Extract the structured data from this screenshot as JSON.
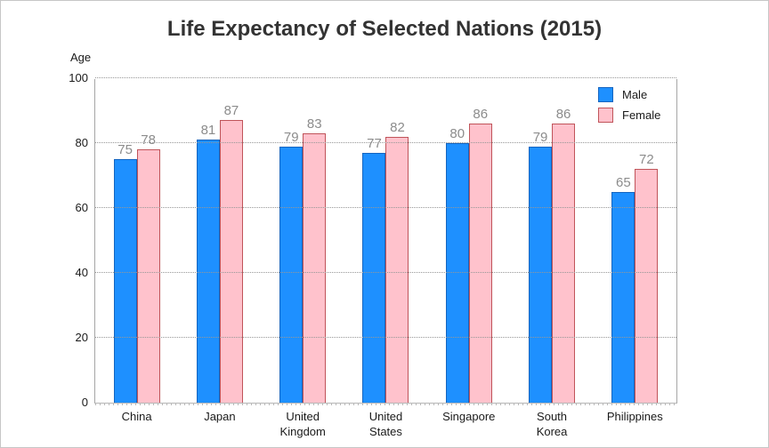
{
  "chart_data": {
    "type": "bar",
    "title": "Life Expectancy of Selected Nations (2015)",
    "ylabel": "Age",
    "xlabel": "",
    "categories": [
      "China",
      "Japan",
      "United Kingdom",
      "United States",
      "Singapore",
      "South Korea",
      "Philippines"
    ],
    "series": [
      {
        "name": "Male",
        "color": "#1E90FF",
        "border_color": "#1565C0",
        "values": [
          75,
          81,
          79,
          77,
          80,
          79,
          65
        ]
      },
      {
        "name": "Female",
        "color": "#FFC2CC",
        "border_color": "#C0545A",
        "values": [
          78,
          87,
          83,
          82,
          86,
          86,
          72
        ]
      }
    ],
    "ylim": [
      0,
      100
    ],
    "yticks": [
      0,
      20,
      40,
      60,
      80,
      100
    ],
    "grid": "dotted-horizontal",
    "legend_position": "top-right-inside",
    "value_label_color": "#8C8C8C",
    "axis_color": "#a6a6a6",
    "title_color": "#333333"
  }
}
